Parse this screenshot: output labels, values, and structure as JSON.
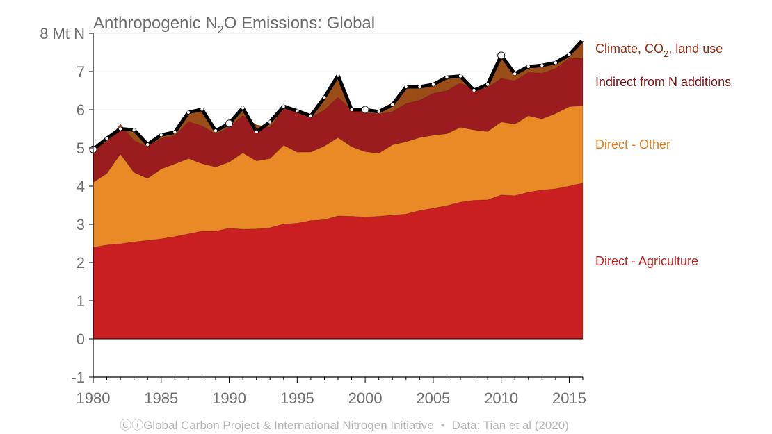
{
  "chart_data": {
    "type": "area",
    "title": "Anthropogenic N",
    "title_sub": "2",
    "title_rest": "O Emissions: Global",
    "ylabel_unit": "Mt N",
    "ylim": [
      -1,
      8
    ],
    "xlim": [
      1980,
      2016
    ],
    "yticks": [
      -1,
      0,
      1,
      2,
      3,
      4,
      5,
      6,
      7,
      8
    ],
    "ytick_labels": [
      "-1",
      "0",
      "1",
      "2",
      "3",
      "4",
      "5",
      "6",
      "7",
      "8 Mt N"
    ],
    "xticks": [
      1980,
      1985,
      1990,
      1995,
      2000,
      2005,
      2010,
      2015
    ],
    "xtick_labels": [
      "1980",
      "1985",
      "1990",
      "1995",
      "2000",
      "2005",
      "2010",
      "2015"
    ],
    "x": [
      1980,
      1981,
      1982,
      1983,
      1984,
      1985,
      1986,
      1987,
      1988,
      1989,
      1990,
      1991,
      1992,
      1993,
      1994,
      1995,
      1996,
      1997,
      1998,
      1999,
      2000,
      2001,
      2002,
      2003,
      2004,
      2005,
      2006,
      2007,
      2008,
      2009,
      2010,
      2011,
      2012,
      2013,
      2014,
      2015,
      2016
    ],
    "series": [
      {
        "name": "Direct - Agriculture",
        "color": "#c91f20",
        "values": [
          2.4,
          2.46,
          2.49,
          2.54,
          2.58,
          2.62,
          2.68,
          2.75,
          2.82,
          2.82,
          2.9,
          2.87,
          2.88,
          2.91,
          3.01,
          3.03,
          3.1,
          3.12,
          3.22,
          3.21,
          3.19,
          3.21,
          3.24,
          3.27,
          3.36,
          3.42,
          3.49,
          3.58,
          3.63,
          3.64,
          3.77,
          3.75,
          3.84,
          3.9,
          3.93,
          4.0,
          4.08
        ]
      },
      {
        "name": "Direct - Other",
        "color": "#e98a26",
        "values": [
          1.7,
          1.87,
          2.35,
          1.82,
          1.62,
          1.83,
          1.9,
          1.97,
          1.77,
          1.68,
          1.73,
          2.0,
          1.78,
          1.81,
          2.06,
          1.86,
          1.79,
          1.93,
          2.05,
          1.82,
          1.71,
          1.65,
          1.84,
          1.89,
          1.91,
          1.91,
          1.88,
          1.96,
          1.84,
          1.79,
          1.91,
          1.87,
          2.0,
          1.86,
          1.97,
          2.08,
          2.03
        ]
      },
      {
        "name": "Indirect from N additions",
        "color": "#9a1c1e",
        "values": [
          0.86,
          0.82,
          0.78,
          0.83,
          0.83,
          0.8,
          0.74,
          0.97,
          0.99,
          0.87,
          0.91,
          0.98,
          0.94,
          0.82,
          0.95,
          1.13,
          0.91,
          0.94,
          1.06,
          0.96,
          1.02,
          1.03,
          0.87,
          1.0,
          0.98,
          1.1,
          1.13,
          1.16,
          1.06,
          1.15,
          1.14,
          1.14,
          1.14,
          1.2,
          1.18,
          1.26,
          1.24
        ]
      },
      {
        "name": "Climate, CO₂, land use",
        "color": "#9b4d17",
        "values": [
          0.0,
          0.05,
          -0.12,
          0.28,
          0.06,
          0.09,
          0.09,
          0.24,
          0.43,
          0.08,
          0.1,
          0.2,
          -0.18,
          0.14,
          0.07,
          -0.02,
          0.04,
          0.33,
          0.57,
          0.01,
          0.08,
          0.06,
          0.18,
          0.44,
          0.35,
          0.23,
          0.35,
          0.18,
          -0.02,
          0.08,
          0.6,
          0.18,
          0.15,
          0.2,
          0.15,
          0.1,
          0.48
        ]
      }
    ],
    "total_line": [
      4.96,
      5.25,
      5.5,
      5.47,
      5.09,
      5.34,
      5.41,
      5.93,
      6.01,
      5.45,
      5.64,
      6.05,
      5.42,
      5.68,
      6.09,
      5.97,
      5.84,
      6.32,
      6.9,
      6.0,
      6.0,
      5.95,
      6.13,
      6.6,
      6.6,
      6.66,
      6.85,
      6.88,
      6.51,
      6.66,
      7.42,
      6.94,
      7.13,
      7.16,
      7.23,
      7.44,
      7.83
    ],
    "highlight_years": [
      1980,
      1990,
      2000,
      2010
    ],
    "legend": [
      {
        "label_main": "Climate, CO",
        "label_sub": "2",
        "label_rest": ", land use",
        "color": "#8f2c12",
        "value_year": 2016
      },
      {
        "label_main": "Indirect from N additions",
        "color": "#7d1112"
      },
      {
        "label_main": "Direct - Other",
        "color": "#e07d1e"
      },
      {
        "label_main": "Direct - Agriculture",
        "color": "#c21b1b"
      }
    ]
  },
  "footer": {
    "credit": "Global Carbon Project & International Nitrogen Initiative",
    "source": "Data: Tian et al (2020)",
    "separator": "•",
    "cc_glyph": "Ⓒⓘ"
  }
}
